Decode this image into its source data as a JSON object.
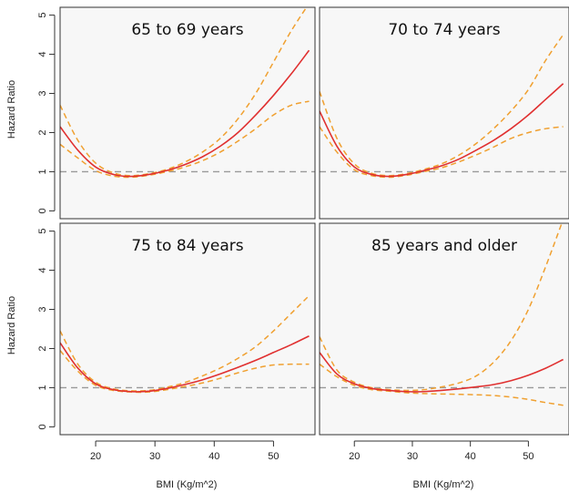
{
  "chart_data": {
    "type": "line",
    "xlabel": "BMI (Kg/m^2)",
    "ylabel": "Hazard Ratio",
    "xlim": [
      14,
      57
    ],
    "ylim": [
      -0.2,
      5.2
    ],
    "xticks": [
      20,
      30,
      40,
      50
    ],
    "yticks": [
      0,
      1,
      2,
      3,
      4,
      5
    ],
    "reference_line": 1,
    "colors": {
      "estimate": "#e03030",
      "ci": "#f0a030",
      "reference": "#999999",
      "panel_bg": "#f7f7f7"
    },
    "panels": [
      {
        "title": "65 to 69 years",
        "x": [
          14,
          17,
          20,
          23,
          26,
          29,
          32,
          35,
          38,
          41,
          44,
          47,
          50,
          53,
          56
        ],
        "hr": [
          2.15,
          1.55,
          1.12,
          0.93,
          0.88,
          0.93,
          1.03,
          1.18,
          1.38,
          1.65,
          2.0,
          2.45,
          2.95,
          3.5,
          4.1
        ],
        "lower": [
          1.7,
          1.35,
          1.03,
          0.89,
          0.86,
          0.91,
          1.0,
          1.12,
          1.28,
          1.5,
          1.78,
          2.1,
          2.45,
          2.7,
          2.8
        ],
        "upper": [
          2.7,
          1.8,
          1.22,
          0.97,
          0.9,
          0.95,
          1.06,
          1.24,
          1.5,
          1.85,
          2.35,
          3.0,
          3.8,
          4.6,
          5.3
        ]
      },
      {
        "title": "70 to 74 years",
        "x": [
          14,
          17,
          20,
          23,
          26,
          29,
          32,
          35,
          38,
          41,
          44,
          47,
          50,
          53,
          56
        ],
        "hr": [
          2.55,
          1.65,
          1.12,
          0.93,
          0.88,
          0.93,
          1.03,
          1.15,
          1.32,
          1.55,
          1.8,
          2.1,
          2.45,
          2.85,
          3.25
        ],
        "lower": [
          2.15,
          1.5,
          1.05,
          0.9,
          0.86,
          0.91,
          1.0,
          1.1,
          1.25,
          1.43,
          1.63,
          1.85,
          2.0,
          2.1,
          2.15
        ],
        "upper": [
          3.05,
          1.85,
          1.2,
          0.96,
          0.9,
          0.95,
          1.06,
          1.2,
          1.42,
          1.72,
          2.1,
          2.55,
          3.1,
          3.85,
          4.5
        ]
      },
      {
        "title": "75 to 84 years",
        "x": [
          14,
          17,
          20,
          23,
          26,
          29,
          32,
          35,
          38,
          41,
          44,
          47,
          50,
          53,
          56
        ],
        "hr": [
          2.15,
          1.5,
          1.1,
          0.95,
          0.9,
          0.91,
          0.98,
          1.08,
          1.2,
          1.35,
          1.52,
          1.7,
          1.9,
          2.1,
          2.32
        ],
        "lower": [
          1.95,
          1.42,
          1.06,
          0.93,
          0.89,
          0.89,
          0.95,
          1.03,
          1.12,
          1.24,
          1.38,
          1.5,
          1.58,
          1.6,
          1.6
        ],
        "upper": [
          2.45,
          1.6,
          1.14,
          0.97,
          0.92,
          0.93,
          1.01,
          1.13,
          1.3,
          1.5,
          1.75,
          2.05,
          2.45,
          2.9,
          3.35
        ]
      },
      {
        "title": "85 years and older",
        "x": [
          14,
          17,
          20,
          23,
          26,
          29,
          32,
          35,
          38,
          41,
          44,
          47,
          50,
          53,
          56
        ],
        "hr": [
          1.9,
          1.35,
          1.1,
          0.98,
          0.93,
          0.9,
          0.9,
          0.93,
          0.97,
          1.02,
          1.08,
          1.18,
          1.32,
          1.5,
          1.72
        ],
        "lower": [
          1.6,
          1.28,
          1.06,
          0.95,
          0.91,
          0.87,
          0.85,
          0.84,
          0.83,
          0.82,
          0.8,
          0.76,
          0.7,
          0.62,
          0.55
        ],
        "upper": [
          2.3,
          1.45,
          1.14,
          1.0,
          0.95,
          0.93,
          0.95,
          1.02,
          1.12,
          1.3,
          1.65,
          2.2,
          3.0,
          4.1,
          5.3
        ]
      }
    ]
  }
}
